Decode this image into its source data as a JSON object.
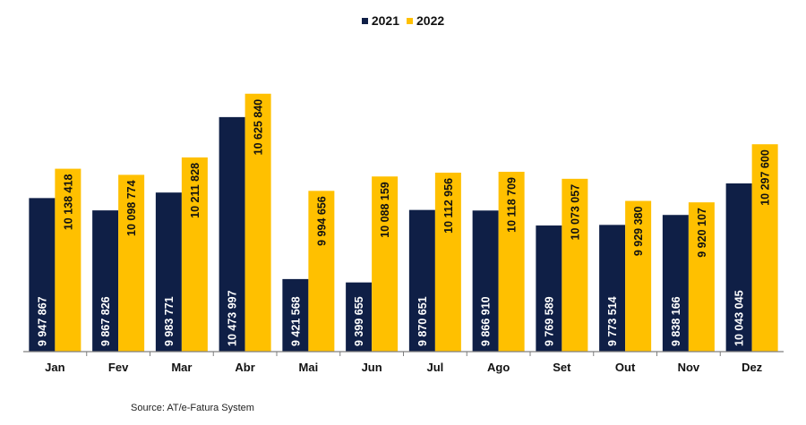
{
  "chart_data": {
    "type": "bar",
    "categories": [
      "Jan",
      "Fev",
      "Mar",
      "Abr",
      "Mai",
      "Jun",
      "Jul",
      "Ago",
      "Set",
      "Out",
      "Nov",
      "Dez"
    ],
    "series": [
      {
        "name": "2021",
        "color": "#0f1f46",
        "values": [
          9947867,
          9867826,
          9983771,
          10473997,
          9421568,
          9399655,
          9870651,
          9866910,
          9769589,
          9773514,
          9838166,
          10043045
        ],
        "labels": [
          "9 947 867",
          "9 867 826",
          "9 983 771",
          "10 473 997",
          "9 421 568",
          "9 399 655",
          "9 870 651",
          "9 866 910",
          "9 769 589",
          "9 773 514",
          "9 838 166",
          "10 043 045"
        ]
      },
      {
        "name": "2022",
        "color": "#ffc000",
        "values": [
          10138418,
          10098774,
          10211828,
          10625840,
          9994656,
          10088159,
          10112956,
          10118709,
          10073057,
          9929380,
          9920107,
          10297600
        ],
        "labels": [
          "10 138 418",
          "10 098 774",
          "10 211 828",
          "10 625 840",
          "9 994 656",
          "10 088 159",
          "10 112 956",
          "10 118 709",
          "10 073 057",
          "9 929 380",
          "9 920 107",
          "10 297 600"
        ]
      }
    ],
    "ylim": [
      8950000,
      10700000
    ],
    "grid": false,
    "legend_position": "top-center"
  },
  "source_note": "Source: AT/e-Fatura System"
}
